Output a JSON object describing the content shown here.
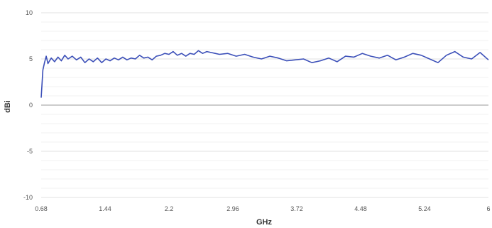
{
  "chart_data": {
    "type": "line",
    "xlabel": "GHz",
    "ylabel": "dBi",
    "xlim": [
      0.68,
      6
    ],
    "ylim": [
      -10,
      10
    ],
    "grid": true,
    "x_ticks": [
      0.68,
      1.44,
      2.2,
      2.96,
      3.72,
      4.48,
      5.24,
      6
    ],
    "x_tick_labels": [
      "0.68",
      "1.44",
      "2.2",
      "2.96",
      "3.72",
      "4.48",
      "5.24",
      "6"
    ],
    "y_ticks": [
      -10,
      -5,
      0,
      5,
      10
    ],
    "y_tick_labels": [
      "-10",
      "-5",
      "0",
      "5",
      "10"
    ],
    "line_color": "#3b4fb8",
    "zero_line_color": "#bbbbbb",
    "series": [
      {
        "x": [
          0.68,
          0.7,
          0.72,
          0.74,
          0.76,
          0.8,
          0.84,
          0.88,
          0.92,
          0.96,
          1.0,
          1.05,
          1.1,
          1.15,
          1.2,
          1.25,
          1.3,
          1.35,
          1.4,
          1.45,
          1.5,
          1.55,
          1.6,
          1.65,
          1.7,
          1.75,
          1.8,
          1.85,
          1.9,
          1.95,
          2.0,
          2.05,
          2.1,
          2.15,
          2.2,
          2.25,
          2.3,
          2.35,
          2.4,
          2.45,
          2.5,
          2.55,
          2.6,
          2.65,
          2.7,
          2.75,
          2.8,
          2.9,
          3.0,
          3.1,
          3.2,
          3.3,
          3.4,
          3.5,
          3.6,
          3.7,
          3.8,
          3.9,
          4.0,
          4.1,
          4.2,
          4.3,
          4.4,
          4.5,
          4.6,
          4.7,
          4.8,
          4.9,
          5.0,
          5.1,
          5.2,
          5.3,
          5.4,
          5.5,
          5.6,
          5.7,
          5.8,
          5.9,
          6.0
        ],
        "y": [
          0.8,
          3.8,
          4.6,
          5.3,
          4.5,
          5.1,
          4.7,
          5.2,
          4.8,
          5.4,
          5.0,
          5.3,
          4.9,
          5.2,
          4.6,
          5.0,
          4.7,
          5.1,
          4.6,
          5.0,
          4.8,
          5.1,
          4.9,
          5.2,
          4.9,
          5.1,
          5.0,
          5.4,
          5.1,
          5.2,
          4.9,
          5.3,
          5.4,
          5.6,
          5.5,
          5.8,
          5.4,
          5.6,
          5.3,
          5.6,
          5.5,
          5.9,
          5.6,
          5.8,
          5.7,
          5.6,
          5.5,
          5.6,
          5.3,
          5.5,
          5.2,
          5.0,
          5.3,
          5.1,
          4.8,
          4.9,
          5.0,
          4.6,
          4.8,
          5.1,
          4.7,
          5.3,
          5.2,
          5.6,
          5.3,
          5.1,
          5.4,
          4.9,
          5.2,
          5.6,
          5.4,
          5.0,
          4.6,
          5.4,
          5.8,
          5.2,
          5.0,
          5.7,
          4.9
        ]
      }
    ]
  }
}
